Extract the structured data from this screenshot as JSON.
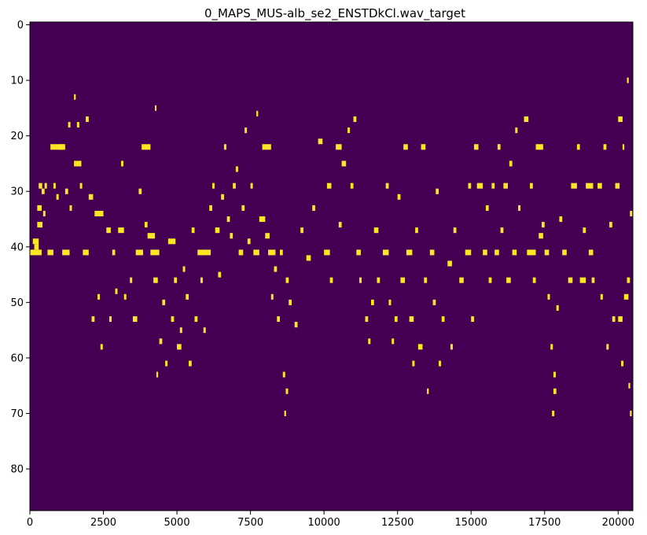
{
  "chart_data": {
    "type": "heatmap",
    "title": "0_MAPS_MUS-alb_se2_ENSTDkCl.wav_target",
    "xlabel": "",
    "ylabel": "",
    "xlim": [
      0,
      20500
    ],
    "ylim": [
      87.5,
      -0.5
    ],
    "x_ticks": [
      0,
      2500,
      5000,
      7500,
      10000,
      12500,
      15000,
      17500,
      20000
    ],
    "x_tick_labels": [
      "0",
      "2500",
      "5000",
      "7500",
      "10000",
      "12500",
      "15000",
      "17500",
      "20000"
    ],
    "y_ticks": [
      0,
      10,
      20,
      30,
      40,
      50,
      60,
      70,
      80
    ],
    "y_tick_labels": [
      "0",
      "10",
      "20",
      "30",
      "40",
      "50",
      "60",
      "70",
      "80"
    ],
    "colormap": {
      "background": "#440154",
      "active": "#fde725"
    },
    "notes": [
      [
        0,
        41,
        400
      ],
      [
        100,
        39,
        200
      ],
      [
        150,
        40,
        150
      ],
      [
        250,
        36,
        180
      ],
      [
        250,
        33,
        150
      ],
      [
        300,
        29,
        120
      ],
      [
        400,
        30,
        100
      ],
      [
        450,
        34,
        80
      ],
      [
        500,
        29,
        80
      ],
      [
        600,
        41,
        200
      ],
      [
        700,
        22,
        400
      ],
      [
        800,
        29,
        80
      ],
      [
        900,
        31,
        80
      ],
      [
        1000,
        22,
        200
      ],
      [
        1100,
        41,
        250
      ],
      [
        1200,
        30,
        100
      ],
      [
        1300,
        18,
        80
      ],
      [
        1350,
        33,
        80
      ],
      [
        1500,
        25,
        250
      ],
      [
        1500,
        13,
        60
      ],
      [
        1600,
        18,
        80
      ],
      [
        1700,
        29,
        80
      ],
      [
        1800,
        41,
        200
      ],
      [
        1900,
        17,
        100
      ],
      [
        2000,
        31,
        150
      ],
      [
        2100,
        53,
        100
      ],
      [
        2200,
        34,
        300
      ],
      [
        2300,
        49,
        80
      ],
      [
        2400,
        58,
        80
      ],
      [
        2600,
        37,
        150
      ],
      [
        2700,
        53,
        80
      ],
      [
        2800,
        41,
        100
      ],
      [
        2900,
        48,
        80
      ],
      [
        3000,
        37,
        200
      ],
      [
        3100,
        25,
        80
      ],
      [
        3200,
        49,
        80
      ],
      [
        3400,
        46,
        80
      ],
      [
        3500,
        53,
        150
      ],
      [
        3600,
        41,
        250
      ],
      [
        3700,
        30,
        100
      ],
      [
        3800,
        22,
        300
      ],
      [
        3900,
        36,
        100
      ],
      [
        4000,
        38,
        250
      ],
      [
        4100,
        41,
        300
      ],
      [
        4200,
        46,
        150
      ],
      [
        4250,
        15,
        40
      ],
      [
        4300,
        63,
        60
      ],
      [
        4400,
        57,
        100
      ],
      [
        4500,
        50,
        100
      ],
      [
        4600,
        61,
        80
      ],
      [
        4700,
        39,
        250
      ],
      [
        4800,
        53,
        100
      ],
      [
        4900,
        46,
        100
      ],
      [
        5000,
        58,
        150
      ],
      [
        5100,
        55,
        80
      ],
      [
        5200,
        44,
        80
      ],
      [
        5300,
        49,
        100
      ],
      [
        5400,
        61,
        100
      ],
      [
        5500,
        37,
        100
      ],
      [
        5600,
        53,
        100
      ],
      [
        5700,
        41,
        300
      ],
      [
        5800,
        46,
        80
      ],
      [
        5900,
        55,
        80
      ],
      [
        6000,
        41,
        150
      ],
      [
        6100,
        33,
        100
      ],
      [
        6200,
        29,
        80
      ],
      [
        6300,
        37,
        150
      ],
      [
        6400,
        45,
        100
      ],
      [
        6500,
        31,
        100
      ],
      [
        6600,
        22,
        80
      ],
      [
        6700,
        35,
        100
      ],
      [
        6800,
        38,
        100
      ],
      [
        6900,
        29,
        100
      ],
      [
        7000,
        26,
        80
      ],
      [
        7100,
        41,
        150
      ],
      [
        7200,
        33,
        100
      ],
      [
        7300,
        19,
        80
      ],
      [
        7400,
        39,
        100
      ],
      [
        7500,
        29,
        80
      ],
      [
        7600,
        41,
        200
      ],
      [
        7700,
        16,
        60
      ],
      [
        7800,
        35,
        200
      ],
      [
        7900,
        22,
        300
      ],
      [
        8000,
        38,
        150
      ],
      [
        8100,
        41,
        250
      ],
      [
        8200,
        49,
        80
      ],
      [
        8300,
        44,
        100
      ],
      [
        8400,
        53,
        100
      ],
      [
        8500,
        41,
        100
      ],
      [
        8600,
        63,
        80
      ],
      [
        8650,
        70,
        60
      ],
      [
        8700,
        66,
        80
      ],
      [
        8700,
        46,
        100
      ],
      [
        8800,
        50,
        100
      ],
      [
        9000,
        54,
        100
      ],
      [
        9200,
        37,
        100
      ],
      [
        9400,
        42,
        150
      ],
      [
        9600,
        33,
        100
      ],
      [
        9800,
        21,
        150
      ],
      [
        10000,
        41,
        200
      ],
      [
        10100,
        29,
        150
      ],
      [
        10200,
        46,
        100
      ],
      [
        10400,
        22,
        200
      ],
      [
        10500,
        36,
        100
      ],
      [
        10600,
        25,
        150
      ],
      [
        10800,
        19,
        80
      ],
      [
        10900,
        29,
        100
      ],
      [
        11000,
        17,
        100
      ],
      [
        11100,
        41,
        150
      ],
      [
        11200,
        46,
        80
      ],
      [
        11400,
        53,
        100
      ],
      [
        11500,
        57,
        80
      ],
      [
        11600,
        50,
        100
      ],
      [
        11700,
        37,
        150
      ],
      [
        11800,
        46,
        100
      ],
      [
        12000,
        41,
        200
      ],
      [
        12100,
        29,
        100
      ],
      [
        12200,
        50,
        80
      ],
      [
        12300,
        57,
        80
      ],
      [
        12400,
        53,
        100
      ],
      [
        12500,
        31,
        100
      ],
      [
        12600,
        46,
        150
      ],
      [
        12700,
        22,
        150
      ],
      [
        12800,
        41,
        200
      ],
      [
        12900,
        53,
        150
      ],
      [
        13000,
        61,
        80
      ],
      [
        13100,
        37,
        100
      ],
      [
        13200,
        58,
        150
      ],
      [
        13300,
        22,
        150
      ],
      [
        13400,
        46,
        100
      ],
      [
        13500,
        66,
        60
      ],
      [
        13600,
        41,
        150
      ],
      [
        13700,
        50,
        100
      ],
      [
        13800,
        30,
        100
      ],
      [
        13900,
        61,
        80
      ],
      [
        14000,
        53,
        100
      ],
      [
        14200,
        43,
        150
      ],
      [
        14300,
        58,
        80
      ],
      [
        14400,
        37,
        100
      ],
      [
        14600,
        46,
        150
      ],
      [
        14800,
        41,
        200
      ],
      [
        14900,
        29,
        100
      ],
      [
        15000,
        53,
        100
      ],
      [
        15100,
        22,
        150
      ],
      [
        15200,
        29,
        200
      ],
      [
        15400,
        41,
        150
      ],
      [
        15500,
        33,
        100
      ],
      [
        15600,
        46,
        100
      ],
      [
        15700,
        29,
        100
      ],
      [
        15800,
        41,
        150
      ],
      [
        15900,
        22,
        100
      ],
      [
        16000,
        37,
        100
      ],
      [
        16100,
        29,
        150
      ],
      [
        16200,
        46,
        150
      ],
      [
        16300,
        25,
        100
      ],
      [
        16400,
        41,
        150
      ],
      [
        16500,
        19,
        80
      ],
      [
        16600,
        33,
        80
      ],
      [
        16800,
        17,
        150
      ],
      [
        16900,
        41,
        300
      ],
      [
        17000,
        29,
        100
      ],
      [
        17100,
        46,
        100
      ],
      [
        17200,
        22,
        250
      ],
      [
        17300,
        38,
        150
      ],
      [
        17400,
        36,
        100
      ],
      [
        17500,
        41,
        150
      ],
      [
        17600,
        49,
        80
      ],
      [
        17700,
        58,
        80
      ],
      [
        17750,
        70,
        80
      ],
      [
        17800,
        66,
        100
      ],
      [
        17800,
        63,
        80
      ],
      [
        17900,
        51,
        80
      ],
      [
        18000,
        35,
        100
      ],
      [
        18100,
        41,
        150
      ],
      [
        18300,
        46,
        150
      ],
      [
        18400,
        29,
        200
      ],
      [
        18600,
        22,
        100
      ],
      [
        18700,
        46,
        200
      ],
      [
        18800,
        37,
        100
      ],
      [
        18900,
        29,
        250
      ],
      [
        19000,
        41,
        150
      ],
      [
        19100,
        46,
        100
      ],
      [
        19300,
        29,
        150
      ],
      [
        19400,
        49,
        80
      ],
      [
        19500,
        22,
        100
      ],
      [
        19600,
        58,
        80
      ],
      [
        19700,
        36,
        100
      ],
      [
        19800,
        53,
        100
      ],
      [
        19900,
        29,
        150
      ],
      [
        20000,
        17,
        150
      ],
      [
        20000,
        53,
        150
      ],
      [
        20100,
        61,
        80
      ],
      [
        20150,
        22,
        60
      ],
      [
        20200,
        49,
        150
      ],
      [
        20300,
        46,
        100
      ],
      [
        20300,
        10,
        60
      ],
      [
        20350,
        65,
        60
      ],
      [
        20400,
        34,
        80
      ],
      [
        20400,
        70,
        60
      ]
    ]
  }
}
